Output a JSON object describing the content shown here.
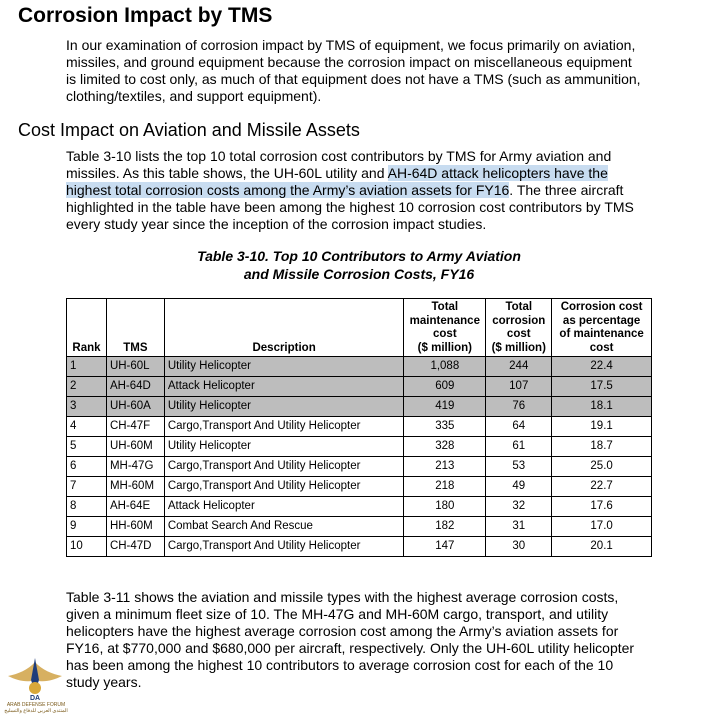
{
  "heading": "Corrosion Impact by TMS",
  "intro_paragraph": "In our examination of corrosion impact by TMS of equipment, we focus primarily on aviation, missiles, and ground equipment because the corrosion impact on miscellaneous equipment is limited to cost only, as much of that equipment does not have a TMS (such as ammunition, clothing/textiles, and support equipment).",
  "subheading": "Cost Impact on Aviation and Missile Assets",
  "para2": {
    "before": "Table 3-10 lists the top 10 total corrosion cost contributors by TMS for Army aviation and missiles. As this table shows, the UH-60L utility and ",
    "highlight": "AH-64D attack helicopters have the highest total corrosion costs among the Army’s aviation assets for FY16",
    "after": ". The three aircraft highlighted in the table have been among the highest 10 corrosion cost contributors by TMS every study year since the inception of the corrosion impact studies."
  },
  "table_caption_line1": "Table 3-10. Top 10 Contributors to Army Aviation",
  "table_caption_line2": "and Missile Corrosion Costs, FY16",
  "table": {
    "headers": {
      "rank": "Rank",
      "tms": "TMS",
      "description": "Description",
      "maintenance_1": "Total",
      "maintenance_2": "maintenance",
      "maintenance_3": "cost",
      "maintenance_4": "($ million)",
      "corrosion_1": "Total",
      "corrosion_2": "corrosion",
      "corrosion_3": "cost",
      "corrosion_4": "($ million)",
      "pct_1": "Corrosion cost",
      "pct_2": "as percentage",
      "pct_3": "of maintenance",
      "pct_4": "cost"
    },
    "rows": [
      {
        "rank": "1",
        "tms": "UH-60L",
        "description": "Utility Helicopter",
        "maintenance": "1,088",
        "corrosion": "244",
        "pct": "22.4"
      },
      {
        "rank": "2",
        "tms": "AH-64D",
        "description": "Attack Helicopter",
        "maintenance": "609",
        "corrosion": "107",
        "pct": "17.5"
      },
      {
        "rank": "3",
        "tms": "UH-60A",
        "description": "Utility Helicopter",
        "maintenance": "419",
        "corrosion": "76",
        "pct": "18.1"
      },
      {
        "rank": "4",
        "tms": "CH-47F",
        "description": "Cargo,Transport And Utility Helicopter",
        "maintenance": "335",
        "corrosion": "64",
        "pct": "19.1"
      },
      {
        "rank": "5",
        "tms": "UH-60M",
        "description": "Utility Helicopter",
        "maintenance": "328",
        "corrosion": "61",
        "pct": "18.7"
      },
      {
        "rank": "6",
        "tms": "MH-47G",
        "description": "Cargo,Transport And Utility Helicopter",
        "maintenance": "213",
        "corrosion": "53",
        "pct": "25.0"
      },
      {
        "rank": "7",
        "tms": "MH-60M",
        "description": "Cargo,Transport And Utility Helicopter",
        "maintenance": "218",
        "corrosion": "49",
        "pct": "22.7"
      },
      {
        "rank": "8",
        "tms": "AH-64E",
        "description": "Attack Helicopter",
        "maintenance": "180",
        "corrosion": "32",
        "pct": "17.6"
      },
      {
        "rank": "9",
        "tms": "HH-60M",
        "description": "Combat Search And Rescue",
        "maintenance": "182",
        "corrosion": "31",
        "pct": "17.0"
      },
      {
        "rank": "10",
        "tms": "CH-47D",
        "description": "Cargo,Transport And Utility Helicopter",
        "maintenance": "147",
        "corrosion": "30",
        "pct": "20.1"
      }
    ]
  },
  "para3": "Table 3-11 shows the aviation and missile types with the highest average corrosion costs, given a minimum fleet size of 10. The MH-47G and MH-60M cargo, transport, and utility helicopters have the highest average corrosion cost among the Army’s aviation assets for FY16, at $770,000 and $680,000 per aircraft, respectively. Only the UH-60L utility helicopter has been among the highest 10 contributors to average corrosion cost for each of the 10 study years.",
  "watermark": {
    "initials": "DA",
    "name": "ARAB DEFENSE FORUM",
    "arabic": "المنتدى العربي للدفاع والتسليح"
  },
  "colors": {
    "highlight": "#c8dcf0",
    "shaded_row": "#bdbdbd",
    "logo_gold": "#c9952c"
  }
}
